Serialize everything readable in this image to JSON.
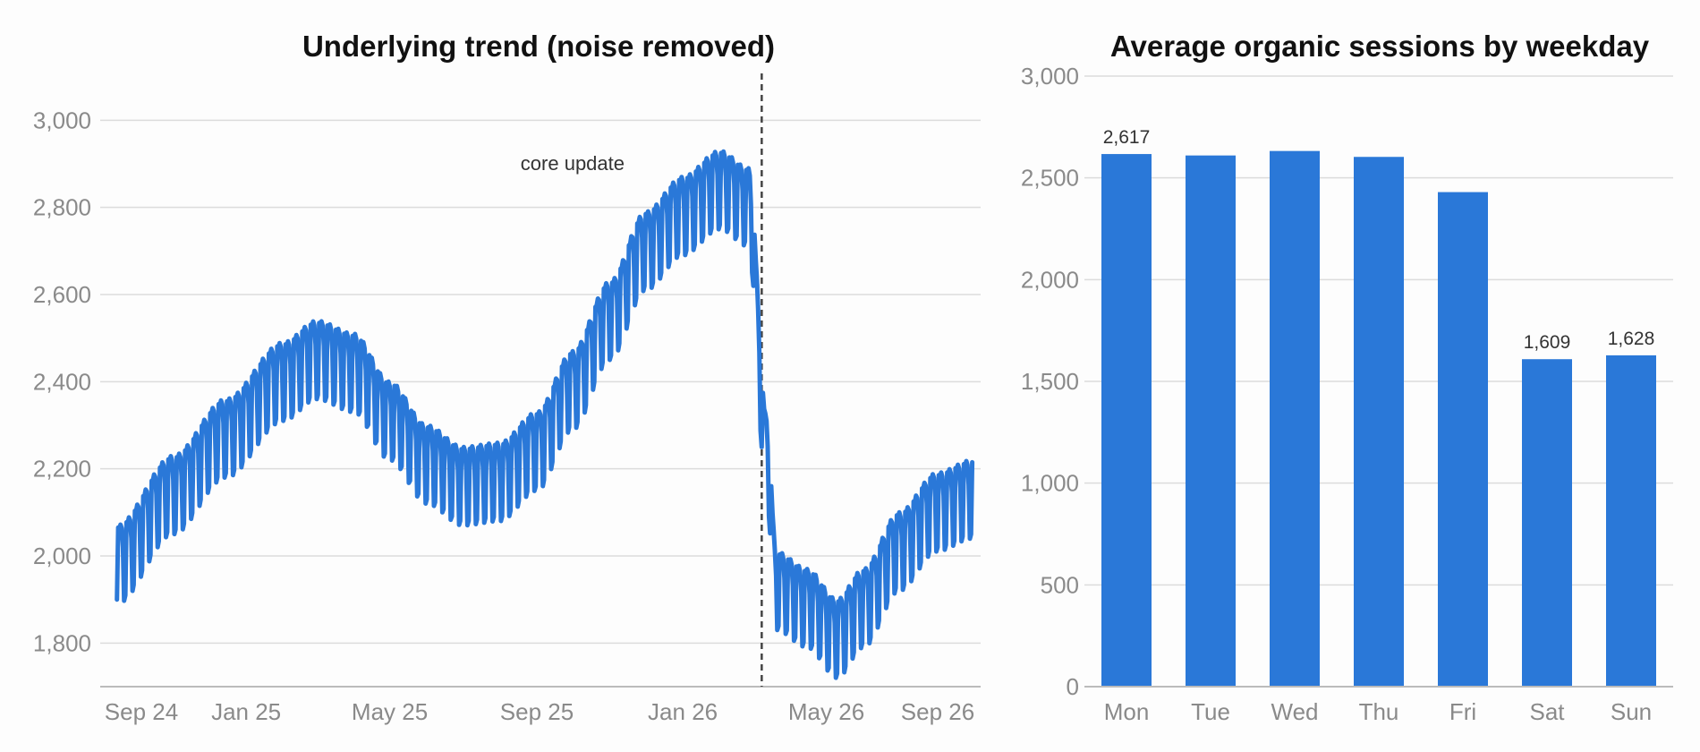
{
  "chart_data": [
    {
      "type": "line",
      "title": "Underlying trend (noise removed)",
      "xlabel": "",
      "ylabel": "",
      "x_ticks": [
        "Sep 24",
        "Jan 25",
        "May 25",
        "Sep 25",
        "Jan 26",
        "May 26",
        "Sep 26"
      ],
      "y_ticks": [
        1800,
        2000,
        2200,
        2400,
        2600,
        2800,
        3000
      ],
      "ylim": [
        1700,
        3050
      ],
      "xlim": [
        "2024-09-01",
        "2026-09-07"
      ],
      "grid": true,
      "annotation": {
        "label": "core update",
        "date": "2026-03-08"
      },
      "series_color": "#2a78d8",
      "x_start": "2024-09-15",
      "x_end": "2026-08-31",
      "trend_knots": [
        [
          "2024-09-15",
          2000
        ],
        [
          "2024-11-01",
          2160
        ],
        [
          "2024-12-15",
          2290
        ],
        [
          "2025-02-01",
          2420
        ],
        [
          "2025-03-01",
          2470
        ],
        [
          "2025-04-01",
          2440
        ],
        [
          "2025-05-01",
          2330
        ],
        [
          "2025-06-01",
          2230
        ],
        [
          "2025-07-01",
          2180
        ],
        [
          "2025-08-01",
          2190
        ],
        [
          "2025-09-01",
          2260
        ],
        [
          "2025-10-01",
          2400
        ],
        [
          "2025-11-01",
          2560
        ],
        [
          "2025-12-01",
          2720
        ],
        [
          "2026-01-01",
          2800
        ],
        [
          "2026-02-01",
          2860
        ],
        [
          "2026-02-25",
          2820
        ],
        [
          "2026-03-12",
          2250
        ],
        [
          "2026-03-20",
          1940
        ],
        [
          "2026-04-15",
          1900
        ],
        [
          "2026-05-10",
          1830
        ],
        [
          "2026-06-01",
          1900
        ],
        [
          "2026-07-01",
          2030
        ],
        [
          "2026-08-01",
          2120
        ],
        [
          "2026-08-31",
          2150
        ]
      ],
      "weekday_effect": [
        65,
        60,
        70,
        60,
        15,
        -110,
        -100
      ]
    },
    {
      "type": "bar",
      "title": "Average organic sessions by weekday",
      "xlabel": "",
      "ylabel": "",
      "categories": [
        "Mon",
        "Tue",
        "Wed",
        "Thu",
        "Fri",
        "Sat",
        "Sun"
      ],
      "values": [
        2617,
        2610,
        2632,
        2603,
        2430,
        1609,
        1628
      ],
      "data_labels": [
        "2,617",
        "",
        "",
        "",
        "",
        "1,609",
        "1,628"
      ],
      "y_ticks": [
        0,
        500,
        1000,
        1500,
        2000,
        2500,
        3000
      ],
      "ylim": [
        0,
        3000
      ],
      "grid": true,
      "bar_color": "#2a78d8"
    }
  ]
}
